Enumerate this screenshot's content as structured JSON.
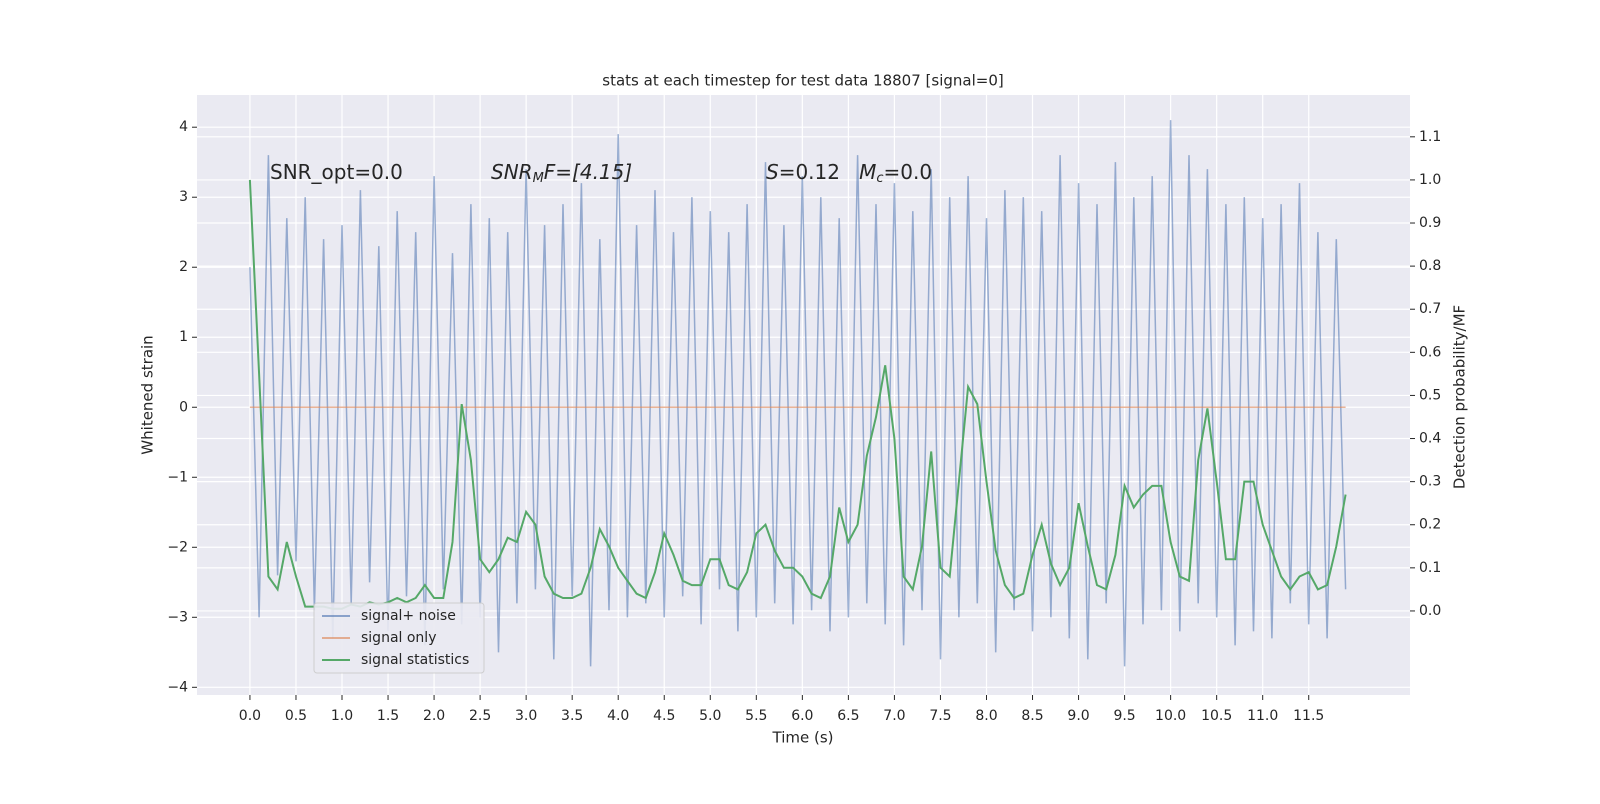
{
  "chart_data": {
    "type": "line",
    "title": "stats at each timestep for test data 18807 [signal=0]",
    "xlabel": "Time (s)",
    "ylabel": "Whitened strain",
    "y2label": "Detection probability/MF",
    "annotations": [
      [
        "SNR_opt=0.0"
      ],
      [
        "SNR",
        "M",
        "F=[4.15]"
      ],
      [
        "S",
        "=0.12   ",
        "M",
        "c",
        "=0.0"
      ]
    ],
    "x": [
      0.0,
      0.1,
      0.2,
      0.3,
      0.4,
      0.5,
      0.6,
      0.7,
      0.8,
      0.9,
      1.0,
      1.1,
      1.2,
      1.3,
      1.4,
      1.5,
      1.6,
      1.7,
      1.8,
      1.9,
      2.0,
      2.1,
      2.2,
      2.3,
      2.4,
      2.5,
      2.6,
      2.7,
      2.8,
      2.9,
      3.0,
      3.1,
      3.2,
      3.3,
      3.4,
      3.5,
      3.6,
      3.7,
      3.8,
      3.9,
      4.0,
      4.1,
      4.2,
      4.3,
      4.4,
      4.5,
      4.6,
      4.7,
      4.8,
      4.9,
      5.0,
      5.1,
      5.2,
      5.3,
      5.4,
      5.5,
      5.6,
      5.7,
      5.8,
      5.9,
      6.0,
      6.1,
      6.2,
      6.3,
      6.4,
      6.5,
      6.6,
      6.7,
      6.8,
      6.9,
      7.0,
      7.1,
      7.2,
      7.3,
      7.4,
      7.5,
      7.6,
      7.7,
      7.8,
      7.9,
      8.0,
      8.1,
      8.2,
      8.3,
      8.4,
      8.5,
      8.6,
      8.7,
      8.8,
      8.9,
      9.0,
      9.1,
      9.2,
      9.3,
      9.4,
      9.5,
      9.6,
      9.7,
      9.8,
      9.9,
      10.0,
      10.1,
      10.2,
      10.3,
      10.4,
      10.5,
      10.6,
      10.7,
      10.8,
      10.9,
      11.0,
      11.1,
      11.2,
      11.3,
      11.4,
      11.5,
      11.6,
      11.7,
      11.8,
      11.9
    ],
    "series": [
      {
        "name": "signal+ noise",
        "color": "#4c72b0",
        "axis": "y",
        "values": [
          2.0,
          -3.0,
          3.6,
          -2.4,
          2.7,
          -2.2,
          3.0,
          -2.9,
          2.4,
          -3.3,
          2.6,
          -2.8,
          3.1,
          -2.5,
          2.3,
          -3.2,
          2.8,
          -2.7,
          2.5,
          -3.4,
          3.3,
          -2.6,
          2.2,
          -3.1,
          2.9,
          -3.0,
          2.7,
          -3.5,
          2.5,
          -2.8,
          3.4,
          -2.6,
          2.6,
          -3.6,
          2.9,
          -2.7,
          3.2,
          -3.7,
          2.4,
          -2.9,
          3.9,
          -3.0,
          2.6,
          -2.8,
          3.1,
          -3.0,
          2.5,
          -2.7,
          3.0,
          -3.1,
          2.8,
          -2.6,
          2.5,
          -3.2,
          2.9,
          -3.0,
          3.5,
          -2.8,
          2.6,
          -3.1,
          3.3,
          -2.9,
          3.0,
          -3.2,
          2.7,
          -3.0,
          3.6,
          -2.8,
          2.9,
          -3.1,
          3.2,
          -3.4,
          2.8,
          -2.9,
          3.4,
          -3.6,
          3.0,
          -3.0,
          3.3,
          -2.8,
          2.7,
          -3.5,
          3.1,
          -2.9,
          3.0,
          -3.2,
          2.8,
          -3.0,
          3.6,
          -3.3,
          3.2,
          -3.6,
          2.9,
          -2.8,
          3.5,
          -3.7,
          3.0,
          -3.1,
          3.3,
          -2.9,
          4.1,
          -3.2,
          3.6,
          -2.8,
          3.4,
          -3.0,
          2.9,
          -3.4,
          3.0,
          -3.2,
          2.7,
          -3.3,
          2.9,
          -2.8,
          3.2,
          -3.1,
          2.5,
          -3.3,
          2.4,
          -2.6
        ]
      },
      {
        "name": "signal only",
        "color": "#dd8452",
        "axis": "y",
        "values": [
          0,
          0,
          0,
          0,
          0,
          0,
          0,
          0,
          0,
          0,
          0,
          0,
          0,
          0,
          0,
          0,
          0,
          0,
          0,
          0,
          0,
          0,
          0,
          0,
          0,
          0,
          0,
          0,
          0,
          0,
          0,
          0,
          0,
          0,
          0,
          0,
          0,
          0,
          0,
          0,
          0,
          0,
          0,
          0,
          0,
          0,
          0,
          0,
          0,
          0,
          0,
          0,
          0,
          0,
          0,
          0,
          0,
          0,
          0,
          0,
          0,
          0,
          0,
          0,
          0,
          0,
          0,
          0,
          0,
          0,
          0,
          0,
          0,
          0,
          0,
          0,
          0,
          0,
          0,
          0,
          0,
          0,
          0,
          0,
          0,
          0,
          0,
          0,
          0,
          0,
          0,
          0,
          0,
          0,
          0,
          0,
          0,
          0,
          0,
          0,
          0,
          0,
          0,
          0,
          0,
          0,
          0,
          0,
          0,
          0,
          0,
          0,
          0,
          0,
          0,
          0,
          0,
          0,
          0,
          0
        ]
      },
      {
        "name": "signal statistics",
        "color": "#55a868",
        "axis": "y2",
        "values": [
          1.0,
          0.55,
          0.08,
          0.05,
          0.16,
          0.08,
          0.01,
          0.01,
          0.01,
          0.005,
          0.005,
          0.015,
          0.01,
          0.02,
          0.015,
          0.02,
          0.03,
          0.02,
          0.03,
          0.06,
          0.03,
          0.03,
          0.16,
          0.48,
          0.35,
          0.12,
          0.09,
          0.12,
          0.17,
          0.16,
          0.23,
          0.2,
          0.08,
          0.04,
          0.03,
          0.03,
          0.04,
          0.1,
          0.19,
          0.15,
          0.1,
          0.07,
          0.04,
          0.03,
          0.09,
          0.18,
          0.13,
          0.07,
          0.06,
          0.06,
          0.12,
          0.12,
          0.06,
          0.05,
          0.09,
          0.18,
          0.2,
          0.14,
          0.1,
          0.1,
          0.08,
          0.04,
          0.03,
          0.08,
          0.24,
          0.16,
          0.2,
          0.36,
          0.45,
          0.57,
          0.4,
          0.08,
          0.05,
          0.15,
          0.37,
          0.1,
          0.08,
          0.3,
          0.52,
          0.48,
          0.3,
          0.14,
          0.06,
          0.03,
          0.04,
          0.13,
          0.2,
          0.11,
          0.06,
          0.1,
          0.25,
          0.15,
          0.06,
          0.05,
          0.13,
          0.29,
          0.24,
          0.27,
          0.29,
          0.29,
          0.16,
          0.08,
          0.07,
          0.35,
          0.47,
          0.3,
          0.12,
          0.12,
          0.3,
          0.3,
          0.2,
          0.14,
          0.08,
          0.05,
          0.08,
          0.09,
          0.05,
          0.06,
          0.15,
          0.27
        ]
      }
    ],
    "xlim": [
      -0.575,
      12.6
    ],
    "ylim": [
      -4.11,
      4.46
    ],
    "y2lim": [
      -0.195,
      1.197
    ],
    "xticks": [
      {
        "value": 0,
        "label": "0.0"
      },
      0.5,
      {
        "value": 1,
        "label": "1.0"
      },
      1.5,
      {
        "value": 2,
        "label": "2.0"
      },
      2.5,
      {
        "value": 3,
        "label": "3.0"
      },
      3.5,
      {
        "value": 4,
        "label": "4.0"
      },
      4.5,
      {
        "value": 5,
        "label": "5.0"
      },
      5.5,
      {
        "value": 6,
        "label": "6.0"
      },
      6.5,
      {
        "value": 7,
        "label": "7.0"
      },
      7.5,
      {
        "value": 8,
        "label": "8.0"
      },
      8.5,
      {
        "value": 9,
        "label": "9.0"
      },
      9.5,
      {
        "value": 10,
        "label": "10.0"
      },
      10.5,
      {
        "value": 11,
        "label": "11.0"
      },
      11.5
    ],
    "yticks": [
      {
        "value": -4,
        "label": "−4"
      },
      {
        "value": -3,
        "label": "−3"
      },
      {
        "value": -2,
        "label": "−2"
      },
      {
        "value": -1,
        "label": "−1"
      },
      0,
      1,
      2,
      3,
      4
    ],
    "y2ticks": [
      {
        "value": 0,
        "label": "0.0"
      },
      0.1,
      0.2,
      0.3,
      0.4,
      0.5,
      0.6,
      0.7,
      0.8,
      0.9,
      {
        "value": 1,
        "label": "1.0"
      },
      1.1
    ],
    "grid": true,
    "legend": "lower left"
  }
}
